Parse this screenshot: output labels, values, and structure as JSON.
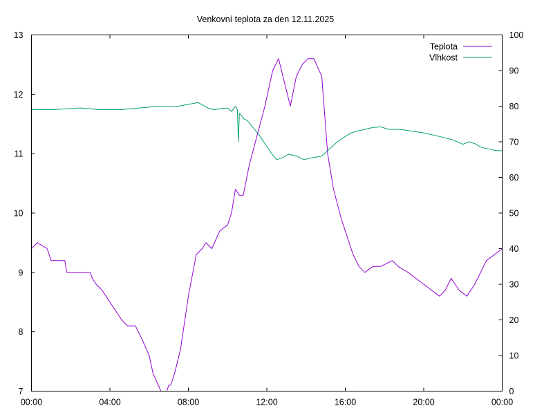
{
  "chart_data": {
    "type": "line",
    "title": "Venkovní teplota za den 12.11.2025",
    "xlabel": "",
    "ylabel": "",
    "y2label": "",
    "x_ticks": [
      "00:00",
      "04:00",
      "08:00",
      "12:00",
      "16:00",
      "20:00",
      "00:00"
    ],
    "xlim_hours": [
      0,
      24
    ],
    "ylim": [
      7,
      13
    ],
    "y_ticks": [
      "7",
      "8",
      "9",
      "10",
      "11",
      "12",
      "13"
    ],
    "y2lim": [
      0,
      100
    ],
    "y2_ticks": [
      "0",
      "10",
      "20",
      "30",
      "40",
      "50",
      "60",
      "70",
      "80",
      "90",
      "100"
    ],
    "grid": false,
    "legend_position": "top-right",
    "series": [
      {
        "name": "Teplota",
        "axis": "left",
        "color": "#9400d3",
        "x": [
          0,
          0.3,
          0.8,
          1.0,
          1.7,
          1.8,
          3.0,
          3.1,
          3.3,
          3.6,
          3.8,
          4.2,
          4.6,
          4.9,
          5.3,
          5.6,
          6.0,
          6.2,
          6.6,
          6.9,
          7.0,
          7.1,
          7.3,
          7.6,
          8.0,
          8.4,
          8.7,
          8.9,
          9.2,
          9.6,
          10.0,
          10.2,
          10.4,
          10.6,
          10.8,
          11.1,
          11.5,
          11.9,
          12.3,
          12.6,
          12.9,
          13.2,
          13.5,
          13.8,
          14.1,
          14.4,
          14.8,
          15.1,
          15.4,
          15.8,
          16.1,
          16.4,
          16.7,
          17.0,
          17.4,
          17.8,
          18.4,
          18.7,
          19.2,
          19.6,
          20.0,
          20.4,
          20.8,
          21.1,
          21.4,
          21.8,
          22.2,
          22.6,
          22.9,
          23.2,
          23.6,
          24.0
        ],
        "y": [
          9.4,
          9.5,
          9.4,
          9.2,
          9.2,
          9.0,
          9.0,
          8.9,
          8.8,
          8.7,
          8.6,
          8.4,
          8.2,
          8.1,
          8.1,
          7.9,
          7.6,
          7.3,
          7.0,
          7.0,
          7.1,
          7.1,
          7.3,
          7.7,
          8.6,
          9.3,
          9.4,
          9.5,
          9.4,
          9.7,
          9.8,
          10.0,
          10.4,
          10.3,
          10.3,
          10.8,
          11.3,
          11.8,
          12.4,
          12.6,
          12.2,
          11.8,
          12.3,
          12.5,
          12.6,
          12.6,
          12.3,
          11.0,
          10.4,
          9.9,
          9.6,
          9.3,
          9.1,
          9.0,
          9.1,
          9.1,
          9.2,
          9.1,
          9.0,
          8.9,
          8.8,
          8.7,
          8.6,
          8.7,
          8.9,
          8.7,
          8.6,
          8.8,
          9.0,
          9.2,
          9.3,
          9.4
        ]
      },
      {
        "name": "Vlhkost",
        "axis": "right",
        "color": "#009e73",
        "x": [
          0,
          1.0,
          2.5,
          3.5,
          4.5,
          5.5,
          6.5,
          7.3,
          8.0,
          8.5,
          9.0,
          9.3,
          9.6,
          10.0,
          10.2,
          10.4,
          10.5,
          10.55,
          10.6,
          10.7,
          10.8,
          11.0,
          11.3,
          11.6,
          11.9,
          12.2,
          12.5,
          12.8,
          13.1,
          13.5,
          13.9,
          14.3,
          14.8,
          15.2,
          15.6,
          16.0,
          16.3,
          16.6,
          17.0,
          17.4,
          17.8,
          18.2,
          18.8,
          19.4,
          20.0,
          20.8,
          21.5,
          22.0,
          22.3,
          22.6,
          22.9,
          23.3,
          23.7,
          24.0
        ],
        "y": [
          79,
          79,
          79.5,
          79,
          79,
          79.5,
          80,
          79.8,
          80.5,
          81,
          79.5,
          79,
          79.3,
          79.5,
          78.5,
          80,
          79,
          70,
          78,
          77.5,
          76.5,
          76,
          74,
          72,
          69.5,
          67,
          65,
          65.5,
          66.5,
          66,
          65,
          65.5,
          66,
          68,
          70,
          71.5,
          72.5,
          73,
          73.5,
          74,
          74.2,
          73.5,
          73.5,
          73,
          72.5,
          71.5,
          70.5,
          69.3,
          70,
          69.5,
          68.5,
          68,
          67.5,
          67.5
        ]
      }
    ]
  }
}
